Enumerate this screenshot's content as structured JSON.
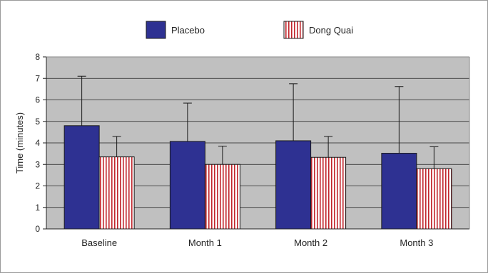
{
  "chart_data": {
    "type": "bar",
    "categories": [
      "Baseline",
      "Month 1",
      "Month 2",
      "Month 3"
    ],
    "series": [
      {
        "name": "Placebo",
        "values": [
          4.8,
          4.07,
          4.1,
          3.52
        ],
        "error_upper": [
          7.1,
          5.85,
          6.75,
          6.62
        ],
        "color": "#2e3192",
        "pattern": "solid"
      },
      {
        "name": "Dong Quai",
        "values": [
          3.35,
          3.0,
          3.33,
          2.8
        ],
        "error_upper": [
          4.3,
          3.85,
          4.3,
          3.82
        ],
        "color": "#c1272d",
        "pattern": "vertical-stripes"
      }
    ],
    "xlabel": "",
    "ylabel": "Time (minutes)",
    "ylim": [
      0,
      8
    ],
    "yticks": [
      "0",
      "1",
      "2",
      "3",
      "4",
      "5",
      "6",
      "7",
      "8"
    ],
    "plot_background": "#c0c0c0",
    "grid": true,
    "legend_position": "top"
  }
}
